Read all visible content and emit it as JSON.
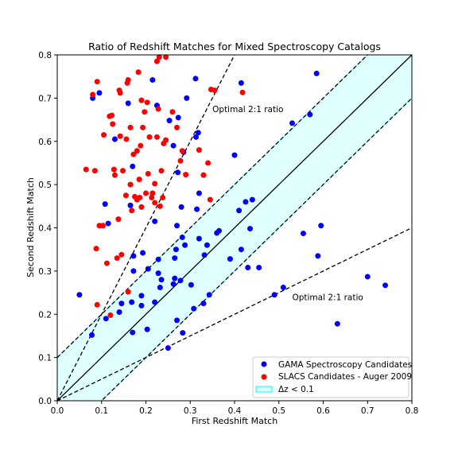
{
  "chart_data": {
    "type": "scatter",
    "title": "Ratio of Redshift Matches for Mixed Spectroscopy Catalogs",
    "xlabel": "First Redshift Match",
    "ylabel": "Second Redshift Match",
    "xlim": [
      0.0,
      0.8
    ],
    "ylim": [
      0.0,
      0.8
    ],
    "xticks": [
      0.0,
      0.1,
      0.2,
      0.3,
      0.4,
      0.5,
      0.6,
      0.7,
      0.8
    ],
    "yticks": [
      0.0,
      0.1,
      0.2,
      0.3,
      0.4,
      0.5,
      0.6,
      0.7,
      0.8
    ],
    "tick_labels": [
      "0.0",
      "0.1",
      "0.2",
      "0.3",
      "0.4",
      "0.5",
      "0.6",
      "0.7",
      "0.8"
    ],
    "grid": false,
    "legend_position": "lower-right",
    "band": {
      "label": "Δz < 0.1",
      "half_width": 0.1,
      "color": "#e0ffff",
      "edge": "#00ffff"
    },
    "reference_lines": [
      {
        "slope": 1.0,
        "intercept": 0.0,
        "style": "solid"
      },
      {
        "slope": 1.0,
        "intercept": 0.1,
        "style": "dashed"
      },
      {
        "slope": 1.0,
        "intercept": -0.1,
        "style": "dashed"
      },
      {
        "slope": 2.0,
        "intercept": 0.0,
        "style": "dashed"
      },
      {
        "slope": 0.5,
        "intercept": 0.0,
        "style": "dashed"
      }
    ],
    "annotations": [
      {
        "text": "Optimal 2:1 ratio",
        "x": 0.35,
        "y": 0.675
      },
      {
        "text": "Optimal 2:1 ratio",
        "x": 0.53,
        "y": 0.24
      }
    ],
    "series": [
      {
        "name": "GAMA Spectroscopy Candidates",
        "color": "#0000ff",
        "points": [
          [
            0.05,
            0.245
          ],
          [
            0.078,
            0.152
          ],
          [
            0.08,
            0.7
          ],
          [
            0.095,
            0.712
          ],
          [
            0.108,
            0.455
          ],
          [
            0.11,
            0.19
          ],
          [
            0.115,
            0.41
          ],
          [
            0.13,
            0.605
          ],
          [
            0.14,
            0.205
          ],
          [
            0.145,
            0.225
          ],
          [
            0.16,
            0.688
          ],
          [
            0.165,
            0.452
          ],
          [
            0.168,
            0.228
          ],
          [
            0.17,
            0.542
          ],
          [
            0.17,
            0.158
          ],
          [
            0.172,
            0.3
          ],
          [
            0.172,
            0.335
          ],
          [
            0.19,
            0.22
          ],
          [
            0.19,
            0.243
          ],
          [
            0.193,
            0.342
          ],
          [
            0.203,
            0.165
          ],
          [
            0.205,
            0.305
          ],
          [
            0.215,
            0.742
          ],
          [
            0.22,
            0.415
          ],
          [
            0.22,
            0.228
          ],
          [
            0.225,
            0.683
          ],
          [
            0.228,
            0.327
          ],
          [
            0.228,
            0.295
          ],
          [
            0.232,
            0.262
          ],
          [
            0.235,
            0.28
          ],
          [
            0.25,
            0.122
          ],
          [
            0.253,
            0.648
          ],
          [
            0.262,
            0.59
          ],
          [
            0.262,
            0.27
          ],
          [
            0.265,
            0.283
          ],
          [
            0.265,
            0.33
          ],
          [
            0.268,
            0.35
          ],
          [
            0.27,
            0.186
          ],
          [
            0.27,
            0.405
          ],
          [
            0.272,
            0.528
          ],
          [
            0.273,
            0.655
          ],
          [
            0.278,
            0.278
          ],
          [
            0.28,
            0.448
          ],
          [
            0.282,
            0.378
          ],
          [
            0.283,
            0.157
          ],
          [
            0.285,
            0.575
          ],
          [
            0.288,
            0.36
          ],
          [
            0.292,
            0.7
          ],
          [
            0.302,
            0.268
          ],
          [
            0.308,
            0.213
          ],
          [
            0.312,
            0.745
          ],
          [
            0.313,
            0.61
          ],
          [
            0.315,
            0.443
          ],
          [
            0.318,
            0.62
          ],
          [
            0.32,
            0.375
          ],
          [
            0.32,
            0.48
          ],
          [
            0.33,
            0.225
          ],
          [
            0.332,
            0.337
          ],
          [
            0.338,
            0.36
          ],
          [
            0.343,
            0.245
          ],
          [
            0.36,
            0.388
          ],
          [
            0.365,
            0.393
          ],
          [
            0.39,
            0.328
          ],
          [
            0.4,
            0.568
          ],
          [
            0.41,
            0.44
          ],
          [
            0.415,
            0.35
          ],
          [
            0.415,
            0.735
          ],
          [
            0.425,
            0.46
          ],
          [
            0.43,
            0.308
          ],
          [
            0.435,
            0.398
          ],
          [
            0.44,
            0.465
          ],
          [
            0.455,
            0.308
          ],
          [
            0.49,
            0.245
          ],
          [
            0.51,
            0.262
          ],
          [
            0.53,
            0.642
          ],
          [
            0.555,
            0.387
          ],
          [
            0.57,
            0.662
          ],
          [
            0.585,
            0.757
          ],
          [
            0.588,
            0.335
          ],
          [
            0.595,
            0.405
          ],
          [
            0.632,
            0.178
          ],
          [
            0.7,
            0.287
          ],
          [
            0.74,
            0.267
          ]
        ]
      },
      {
        "name": "SLACS Candidates - Auger 2009",
        "color": "#ff0000",
        "points": [
          [
            0.065,
            0.535
          ],
          [
            0.08,
            0.708
          ],
          [
            0.085,
            0.532
          ],
          [
            0.088,
            0.352
          ],
          [
            0.09,
            0.222
          ],
          [
            0.09,
            0.738
          ],
          [
            0.095,
            0.405
          ],
          [
            0.103,
            0.405
          ],
          [
            0.105,
            0.615
          ],
          [
            0.112,
            0.318
          ],
          [
            0.118,
            0.658
          ],
          [
            0.12,
            0.198
          ],
          [
            0.123,
            0.66
          ],
          [
            0.125,
            0.64
          ],
          [
            0.128,
            0.535
          ],
          [
            0.13,
            0.522
          ],
          [
            0.135,
            0.33
          ],
          [
            0.138,
            0.42
          ],
          [
            0.14,
            0.718
          ],
          [
            0.142,
            0.612
          ],
          [
            0.142,
            0.712
          ],
          [
            0.145,
            0.338
          ],
          [
            0.148,
            0.532
          ],
          [
            0.155,
            0.475
          ],
          [
            0.156,
            0.605
          ],
          [
            0.158,
            0.735
          ],
          [
            0.16,
            0.252
          ],
          [
            0.16,
            0.742
          ],
          [
            0.165,
            0.5
          ],
          [
            0.165,
            0.632
          ],
          [
            0.168,
            0.44
          ],
          [
            0.172,
            0.57
          ],
          [
            0.175,
            0.472
          ],
          [
            0.18,
            0.465
          ],
          [
            0.18,
            0.578
          ],
          [
            0.183,
            0.76
          ],
          [
            0.185,
            0.512
          ],
          [
            0.186,
            0.47
          ],
          [
            0.188,
            0.59
          ],
          [
            0.19,
            0.695
          ],
          [
            0.19,
            0.448
          ],
          [
            0.193,
            0.632
          ],
          [
            0.197,
            0.668
          ],
          [
            0.2,
            0.48
          ],
          [
            0.203,
            0.69
          ],
          [
            0.205,
            0.525
          ],
          [
            0.208,
            0.61
          ],
          [
            0.213,
            0.47
          ],
          [
            0.215,
            0.48
          ],
          [
            0.22,
            0.458
          ],
          [
            0.22,
            0.502
          ],
          [
            0.225,
            0.785
          ],
          [
            0.225,
            0.61
          ],
          [
            0.228,
            0.675
          ],
          [
            0.23,
            0.795
          ],
          [
            0.232,
            0.45
          ],
          [
            0.235,
            0.532
          ],
          [
            0.238,
            0.47
          ],
          [
            0.24,
            0.595
          ],
          [
            0.245,
            0.795
          ],
          [
            0.245,
            0.603
          ],
          [
            0.26,
            0.668
          ],
          [
            0.27,
            0.632
          ],
          [
            0.278,
            0.555
          ],
          [
            0.282,
            0.578
          ],
          [
            0.29,
            0.523
          ],
          [
            0.32,
            0.58
          ],
          [
            0.33,
            0.522
          ],
          [
            0.34,
            0.55
          ],
          [
            0.345,
            0.465
          ],
          [
            0.347,
            0.72
          ],
          [
            0.355,
            0.718
          ],
          [
            0.418,
            0.713
          ]
        ]
      }
    ]
  }
}
